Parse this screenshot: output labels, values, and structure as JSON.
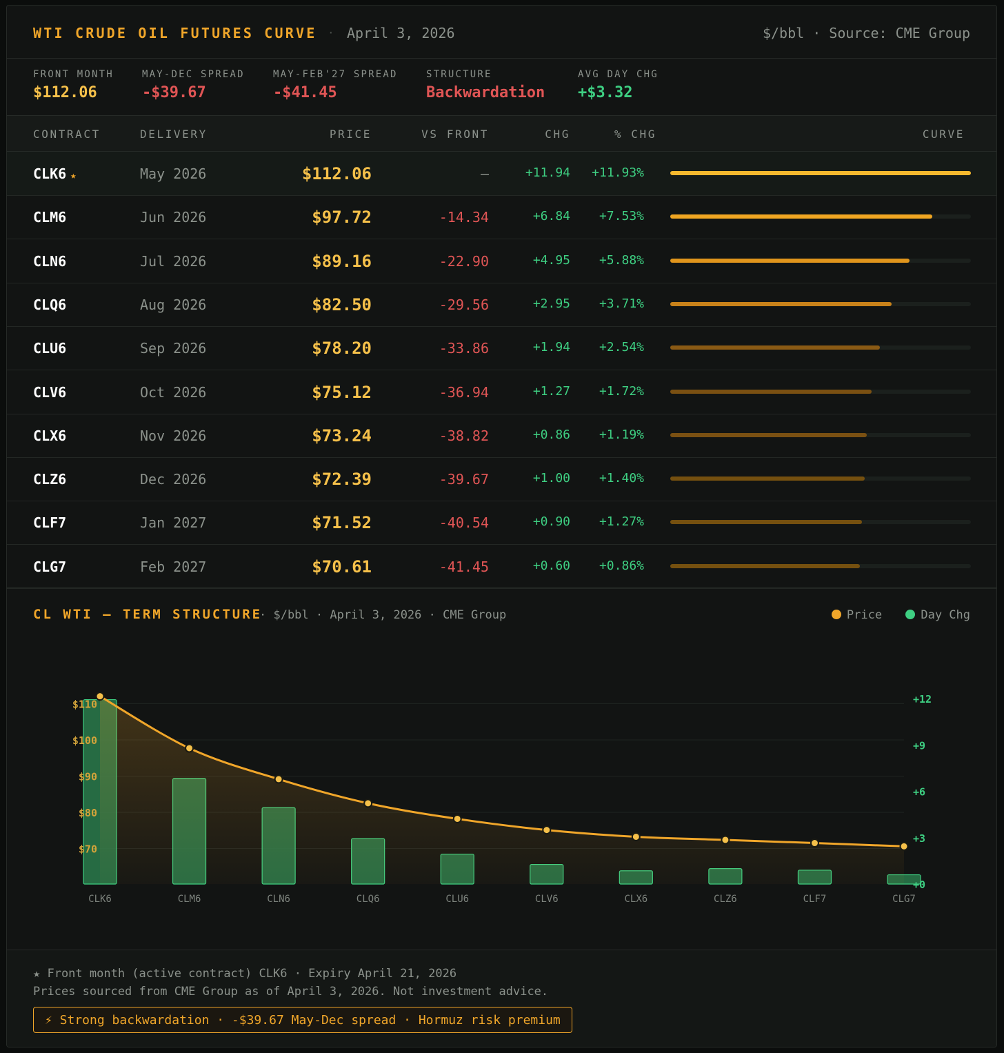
{
  "header": {
    "title": "WTI CRUDE OIL FUTURES CURVE",
    "separator": "·",
    "date": "April 3, 2026",
    "unit_source": "$/bbl · Source: CME Group"
  },
  "stats": [
    {
      "label": "FRONT MONTH",
      "value": "$112.06",
      "color": "#f5c04a"
    },
    {
      "label": "MAY-DEC SPREAD",
      "value": "-$39.67",
      "color": "#e05555"
    },
    {
      "label": "MAY-FEB'27 SPREAD",
      "value": "-$41.45",
      "color": "#e05555"
    },
    {
      "label": "STRUCTURE",
      "value": "Backwardation",
      "color": "#e05555"
    },
    {
      "label": "AVG DAY CHG",
      "value": "+$3.32",
      "color": "#3ecf82"
    }
  ],
  "table": {
    "columns": {
      "contract": "CONTRACT",
      "delivery": "DELIVERY",
      "price": "PRICE",
      "vs_front": "VS FRONT",
      "chg": "CHG",
      "pct_chg": "% CHG",
      "curve": "CURVE"
    },
    "star": "★",
    "rows": [
      {
        "contract": "CLK6",
        "delivery": "May 2026",
        "price": "$112.06",
        "vs_front": "—",
        "chg": "+11.94",
        "pct_chg": "+11.93%",
        "front": true
      },
      {
        "contract": "CLM6",
        "delivery": "Jun 2026",
        "price": "$97.72",
        "vs_front": "-14.34",
        "chg": "+6.84",
        "pct_chg": "+7.53%"
      },
      {
        "contract": "CLN6",
        "delivery": "Jul 2026",
        "price": "$89.16",
        "vs_front": "-22.90",
        "chg": "+4.95",
        "pct_chg": "+5.88%"
      },
      {
        "contract": "CLQ6",
        "delivery": "Aug 2026",
        "price": "$82.50",
        "vs_front": "-29.56",
        "chg": "+2.95",
        "pct_chg": "+3.71%"
      },
      {
        "contract": "CLU6",
        "delivery": "Sep 2026",
        "price": "$78.20",
        "vs_front": "-33.86",
        "chg": "+1.94",
        "pct_chg": "+2.54%"
      },
      {
        "contract": "CLV6",
        "delivery": "Oct 2026",
        "price": "$75.12",
        "vs_front": "-36.94",
        "chg": "+1.27",
        "pct_chg": "+1.72%"
      },
      {
        "contract": "CLX6",
        "delivery": "Nov 2026",
        "price": "$73.24",
        "vs_front": "-38.82",
        "chg": "+0.86",
        "pct_chg": "+1.19%"
      },
      {
        "contract": "CLZ6",
        "delivery": "Dec 2026",
        "price": "$72.39",
        "vs_front": "-39.67",
        "chg": "+1.00",
        "pct_chg": "+1.40%"
      },
      {
        "contract": "CLF7",
        "delivery": "Jan 2027",
        "price": "$71.52",
        "vs_front": "-40.54",
        "chg": "+0.90",
        "pct_chg": "+1.27%"
      },
      {
        "contract": "CLG7",
        "delivery": "Feb 2027",
        "price": "$70.61",
        "vs_front": "-41.45",
        "chg": "+0.60",
        "pct_chg": "+0.86%"
      }
    ]
  },
  "chart_section": {
    "title": "CL WTI — TERM STRUCTURE",
    "subtitle": "· $/bbl · April 3, 2026 · CME Group",
    "legend": [
      {
        "label": "Price",
        "color": "#f0a62a"
      },
      {
        "label": "Day Chg",
        "color": "#3ecf82"
      }
    ]
  },
  "chart_data": {
    "type": "line+bar",
    "title": "CL WTI — TERM STRUCTURE",
    "categories": [
      "CLK6",
      "CLM6",
      "CLN6",
      "CLQ6",
      "CLU6",
      "CLV6",
      "CLX6",
      "CLZ6",
      "CLF7",
      "CLG7"
    ],
    "series": [
      {
        "name": "Price",
        "type": "line",
        "axis": "left",
        "values": [
          112.06,
          97.72,
          89.16,
          82.5,
          78.2,
          75.12,
          73.24,
          72.39,
          71.52,
          70.61
        ]
      },
      {
        "name": "Day Chg",
        "type": "bar",
        "axis": "right",
        "values": [
          11.94,
          6.84,
          4.95,
          2.95,
          1.94,
          1.27,
          0.86,
          1.0,
          0.9,
          0.6
        ]
      }
    ],
    "left_axis": {
      "ticks": [
        110,
        100,
        90,
        80,
        70
      ],
      "tick_labels": [
        "$110",
        "$100",
        "$90",
        "$80",
        "$70"
      ],
      "ylim": [
        60,
        112.5
      ]
    },
    "right_axis": {
      "ticks": [
        12,
        9,
        6,
        3,
        0
      ],
      "tick_labels": [
        "+12",
        "+9",
        "+6",
        "+3",
        "+0"
      ],
      "ylim": [
        0,
        12
      ]
    },
    "curve_bar_max": 112.06
  },
  "footer": {
    "note1": "★ Front month (active contract) CLK6 · Expiry April 21, 2026",
    "note2": "Prices sourced from CME Group as of April 3, 2026. Not investment advice.",
    "badge": "⚡ Strong backwardation · -$39.67 May-Dec spread · Hormuz risk premium"
  },
  "colors": {
    "accent": "#f0a62a",
    "price": "#f5c04a",
    "negative": "#e05555",
    "positive": "#3ecf82"
  }
}
